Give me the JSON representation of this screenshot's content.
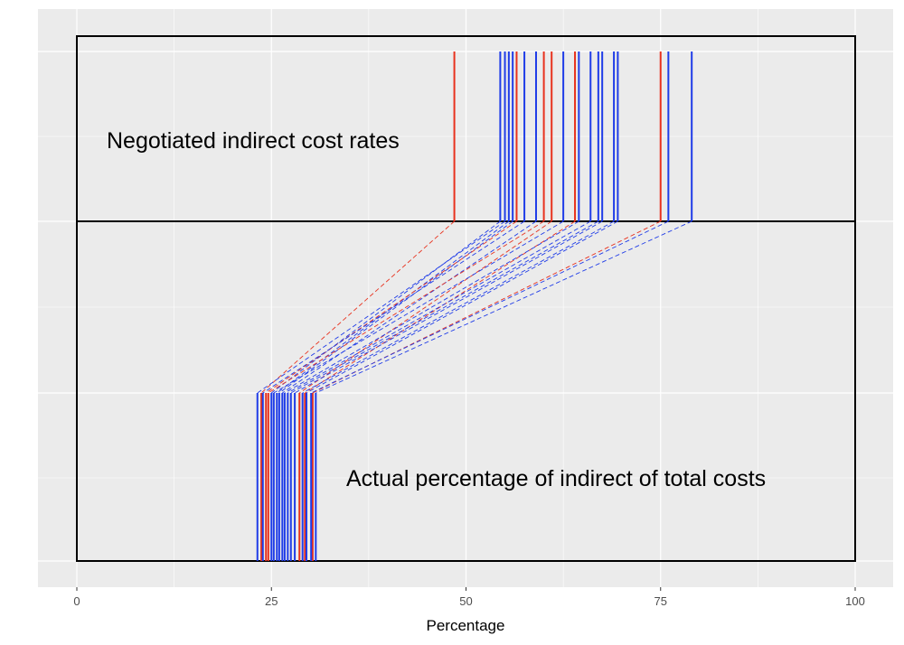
{
  "chart_data": {
    "type": "line",
    "title": "",
    "xlabel": "Percentage",
    "ylabel": "",
    "xlim": [
      -10,
      105
    ],
    "x_ticks": [
      0,
      25,
      50,
      75,
      100
    ],
    "x_tick_labels": [
      "0",
      "25",
      "50",
      "75",
      "100"
    ],
    "grid": true,
    "annotations": {
      "top": "Negotiated indirect cost rates",
      "bottom": "Actual percentage of indirect of total costs"
    },
    "colors": {
      "red": "#e8321e",
      "blue": "#1f3ce8",
      "panel": "#ebebeb"
    },
    "pairs": [
      {
        "negotiated": 48.5,
        "actual": 23.7,
        "color": "red"
      },
      {
        "negotiated": 54.4,
        "actual": 25.0,
        "color": "blue"
      },
      {
        "negotiated": 55.0,
        "actual": 23.2,
        "color": "blue"
      },
      {
        "negotiated": 55.5,
        "actual": 25.7,
        "color": "blue"
      },
      {
        "negotiated": 56.0,
        "actual": 26.0,
        "color": "blue"
      },
      {
        "negotiated": 56.5,
        "actual": 24.3,
        "color": "red"
      },
      {
        "negotiated": 57.5,
        "actual": 23.9,
        "color": "blue"
      },
      {
        "negotiated": 59.0,
        "actual": 26.4,
        "color": "blue"
      },
      {
        "negotiated": 60.0,
        "actual": 24.6,
        "color": "red"
      },
      {
        "negotiated": 61.0,
        "actual": 28.6,
        "color": "red"
      },
      {
        "negotiated": 62.5,
        "actual": 25.3,
        "color": "blue"
      },
      {
        "negotiated": 64.0,
        "actual": 29.3,
        "color": "red"
      },
      {
        "negotiated": 64.5,
        "actual": 26.7,
        "color": "blue"
      },
      {
        "negotiated": 66.0,
        "actual": 27.1,
        "color": "blue"
      },
      {
        "negotiated": 67.0,
        "actual": 27.5,
        "color": "blue"
      },
      {
        "negotiated": 67.5,
        "actual": 28.0,
        "color": "blue"
      },
      {
        "negotiated": 69.0,
        "actual": 29.0,
        "color": "blue"
      },
      {
        "negotiated": 69.5,
        "actual": 29.5,
        "color": "blue"
      },
      {
        "negotiated": 75.0,
        "actual": 30.3,
        "color": "red"
      },
      {
        "negotiated": 76.0,
        "actual": 30.1,
        "color": "blue"
      },
      {
        "negotiated": 79.0,
        "actual": 30.7,
        "color": "blue"
      }
    ]
  }
}
